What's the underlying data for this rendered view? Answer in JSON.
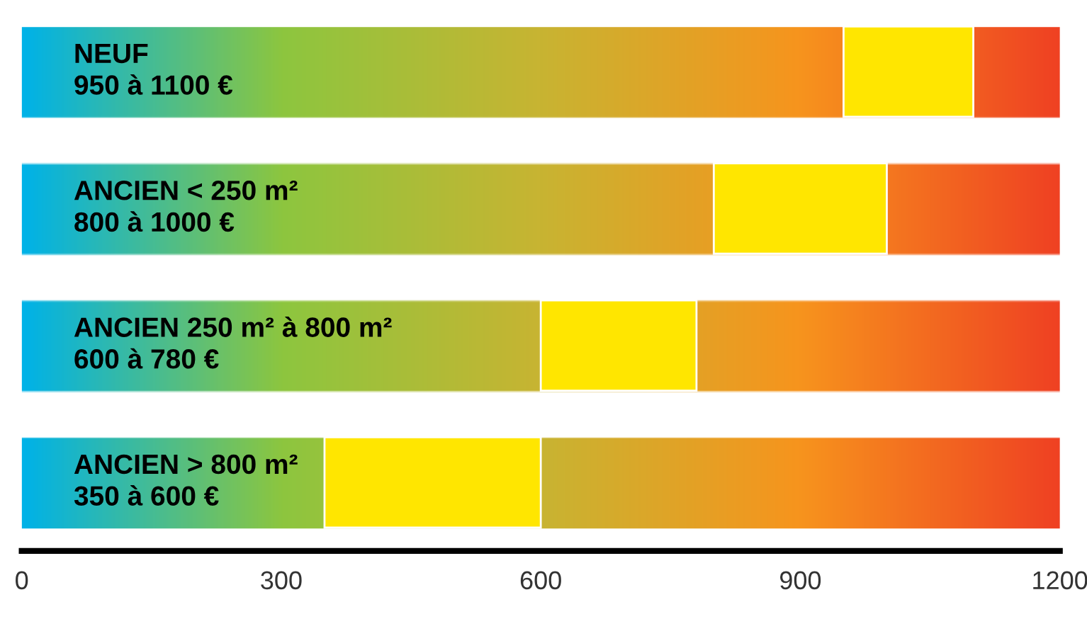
{
  "chart_data": {
    "type": "bar",
    "orientation": "horizontal",
    "categories": [
      "NEUF\n950 à 1100 €",
      "ANCIEN < 250 m²\n800 à 1000 €",
      "ANCIEN 250 m² à 800 m²\n600 à 780 €",
      "ANCIEN > 800 m²\n350 à 600 €"
    ],
    "base": [
      950,
      800,
      600,
      350
    ],
    "values": [
      150,
      200,
      180,
      250
    ],
    "color": "#ffe600",
    "xlim": [
      0,
      1200
    ],
    "xticks": [
      0,
      300,
      600,
      900,
      1200
    ],
    "grid": false,
    "tick_labels": "x"
  }
}
